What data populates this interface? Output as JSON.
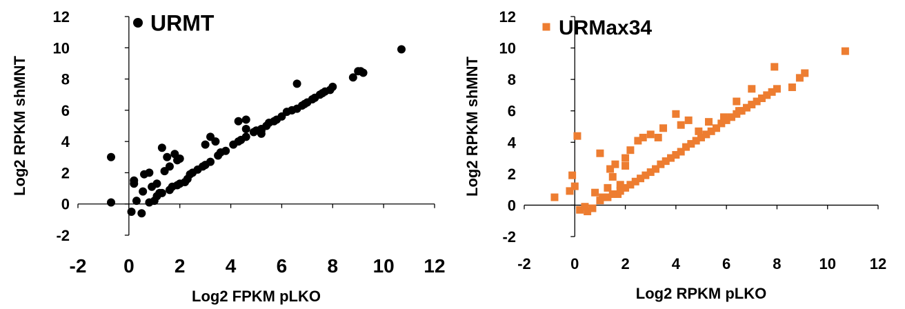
{
  "chart_data": [
    {
      "type": "scatter",
      "title": "",
      "xlabel": "Log2 FPKM pLKO",
      "ylabel": "Log2 RPKM shMNT",
      "xlim": [
        -2,
        12
      ],
      "ylim": [
        -2,
        12
      ],
      "xticks": [
        "-2",
        "0",
        "2",
        "4",
        "6",
        "8",
        "10",
        "12"
      ],
      "yticks": [
        "-2",
        "0",
        "2",
        "4",
        "6",
        "8",
        "10",
        "12"
      ],
      "grid": false,
      "legend_position": "top-left",
      "series": [
        {
          "name": "URMT",
          "color": "#000000",
          "marker": "circle",
          "x": [
            -0.7,
            -0.7,
            0.1,
            0.2,
            0.3,
            0.5,
            0.6,
            0.8,
            0.9,
            1.1,
            1.2,
            1.3,
            1.4,
            1.5,
            1.6,
            1.8,
            1.9,
            2.0,
            3.0,
            3.2,
            3.4,
            4.3,
            4.6,
            4.6,
            5.2,
            5.2,
            6.6,
            8.8,
            9.0,
            9.1,
            9.2,
            10.7,
            0.2,
            0.55,
            0.8,
            1.0,
            1.1,
            1.3,
            1.6,
            1.7,
            1.9,
            2.0,
            2.2,
            2.3,
            2.4,
            2.5,
            2.7,
            2.9,
            3.0,
            3.2,
            3.5,
            3.6,
            3.8,
            4.1,
            4.3,
            4.4,
            4.6,
            4.9,
            5.0,
            5.2,
            5.4,
            5.5,
            5.7,
            6.0,
            6.2,
            6.4,
            6.6,
            6.8,
            7.0,
            7.2,
            7.3,
            7.5,
            7.7,
            7.9,
            8.0,
            5.8,
            6.4,
            6.9,
            7.6
          ],
          "y": [
            3.0,
            0.1,
            -0.5,
            1.5,
            0.2,
            -0.6,
            1.9,
            2.0,
            1.1,
            1.3,
            0.7,
            3.6,
            2.1,
            3.0,
            2.4,
            3.2,
            2.8,
            2.9,
            3.8,
            4.3,
            4.0,
            5.3,
            4.8,
            5.4,
            4.5,
            4.7,
            7.7,
            8.1,
            8.5,
            8.5,
            8.4,
            9.9,
            1.3,
            0.8,
            0.1,
            0.2,
            0.5,
            0.7,
            0.9,
            1.1,
            1.2,
            1.3,
            1.4,
            1.6,
            1.9,
            2.0,
            2.2,
            2.4,
            2.5,
            2.7,
            3.1,
            3.3,
            3.4,
            3.8,
            4.0,
            4.1,
            4.3,
            4.6,
            4.7,
            4.8,
            5.0,
            5.2,
            5.3,
            5.6,
            5.9,
            6.0,
            6.1,
            6.3,
            6.5,
            6.7,
            6.8,
            7.0,
            7.2,
            7.3,
            7.5,
            5.4,
            6.0,
            6.4,
            7.1
          ]
        }
      ]
    },
    {
      "type": "scatter",
      "title": "",
      "xlabel": "Log2 RPKM pLKO",
      "ylabel": "Log2 RPKM shMNT",
      "xlim": [
        -2,
        12
      ],
      "ylim": [
        -2,
        12
      ],
      "xticks": [
        "-2",
        "0",
        "2",
        "4",
        "6",
        "8",
        "10",
        "12"
      ],
      "yticks": [
        "-2",
        "0",
        "2",
        "4",
        "6",
        "8",
        "10",
        "12"
      ],
      "grid": false,
      "legend_position": "top-left",
      "series": [
        {
          "name": "URMax34",
          "color": "#ED7D31",
          "marker": "square",
          "x": [
            -0.8,
            -0.2,
            -0.1,
            0.0,
            0.1,
            0.2,
            0.4,
            0.5,
            0.7,
            0.8,
            1.0,
            1.1,
            1.3,
            1.4,
            1.5,
            1.6,
            1.7,
            1.8,
            2.0,
            2.0,
            2.2,
            2.5,
            2.7,
            3.0,
            3.3,
            3.5,
            4.0,
            4.2,
            4.5,
            5.3,
            6.4,
            7.0,
            7.9,
            8.6,
            8.9,
            9.1,
            10.7,
            1.0,
            1.3,
            1.5,
            1.8,
            2.0,
            2.2,
            2.4,
            2.6,
            2.8,
            3.0,
            3.2,
            3.4,
            3.6,
            3.8,
            4.0,
            4.2,
            4.4,
            4.6,
            4.8,
            5.0,
            5.2,
            5.4,
            5.6,
            5.8,
            6.0,
            6.2,
            6.4,
            6.6,
            6.8,
            7.0,
            7.2,
            7.4,
            7.6,
            7.8,
            8.0,
            4.9,
            5.9,
            6.5
          ],
          "y": [
            0.5,
            0.9,
            1.9,
            1.2,
            4.4,
            -0.3,
            -0.1,
            -0.4,
            -0.2,
            0.8,
            3.3,
            0.5,
            1.1,
            2.3,
            1.8,
            2.6,
            0.7,
            1.3,
            2.5,
            3.0,
            3.5,
            4.1,
            4.3,
            4.5,
            4.3,
            4.9,
            5.8,
            5.1,
            5.4,
            5.3,
            6.6,
            7.4,
            8.8,
            7.5,
            8.1,
            8.4,
            9.8,
            0.3,
            0.5,
            0.7,
            0.9,
            1.1,
            1.3,
            1.5,
            1.7,
            1.9,
            2.1,
            2.3,
            2.6,
            2.8,
            3.0,
            3.2,
            3.4,
            3.7,
            3.9,
            4.1,
            4.3,
            4.5,
            4.7,
            4.9,
            5.2,
            5.4,
            5.6,
            5.8,
            6.0,
            6.2,
            6.4,
            6.6,
            6.8,
            7.0,
            7.2,
            7.4,
            4.7,
            5.6,
            6.0
          ]
        }
      ]
    }
  ]
}
